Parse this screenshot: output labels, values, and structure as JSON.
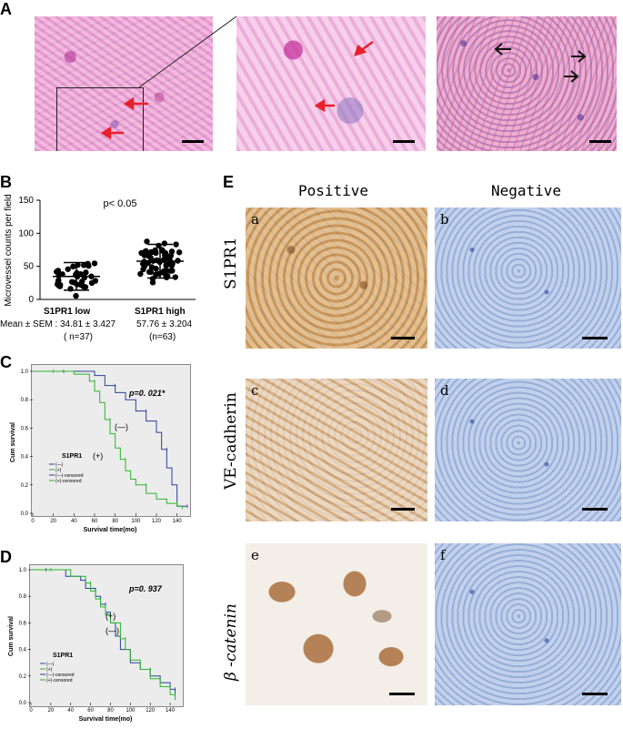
{
  "panels": {
    "A": "A",
    "B": "B",
    "C": "C",
    "D": "D",
    "E": "E"
  },
  "colors": {
    "arrow_red": "#e8202a",
    "km_blue": "#2a3f9e",
    "km_green": "#2bb52b"
  },
  "panelB": {
    "ylabel": "Microvessel counts per field",
    "yticks": [
      "0",
      "50",
      "100",
      "150"
    ],
    "pvalue": "p< 0.05",
    "mean_prefix": "Mean ± SEM :",
    "groups": [
      {
        "name": "S1PR1 low",
        "mean_sem": "34.81 ± 3.427",
        "n": "( n=37)"
      },
      {
        "name": "S1PR1 high",
        "mean_sem": "57.76 ± 3.204",
        "n": "(n=63)"
      }
    ]
  },
  "panelC": {
    "ylabel": "Cum survival",
    "xlabel": "Survival time(mo)",
    "yticks": [
      "0.0",
      "0.2",
      "0.4",
      "0.6",
      "0.8",
      "1.0"
    ],
    "xticks": [
      "0",
      "20",
      "40",
      "60",
      "80",
      "100",
      "120",
      "140"
    ],
    "p": "p=0. 021*",
    "neg": "(—)",
    "pos": "(+)",
    "legend_title": "S1PR1",
    "legend": [
      "(—)",
      "(+)",
      "(—)-censored",
      "(+)-censored"
    ]
  },
  "panelD": {
    "ylabel": "Cum survival",
    "xlabel": "Survival time(mo)",
    "yticks": [
      "0.0",
      "0.2",
      "0.4",
      "0.6",
      "0.8",
      "1.0"
    ],
    "xticks": [
      "0",
      "20",
      "40",
      "60",
      "80",
      "100",
      "120",
      "140"
    ],
    "p": "p=0. 937",
    "neg": "(—)",
    "pos": "(+)",
    "legend_title": "S1PR1",
    "legend": [
      "(—)",
      "(+)",
      "(—)-censored",
      "(+)-censored"
    ]
  },
  "panelE": {
    "col_headers": [
      "Positive",
      "Negative"
    ],
    "row_labels": [
      "S1PR1",
      "VE-cadherin",
      "β -catenin"
    ],
    "sub_labels": [
      "a",
      "b",
      "c",
      "d",
      "e",
      "f"
    ]
  },
  "chart_data": [
    {
      "type": "scatter",
      "title": "",
      "ylabel": "Microvessel counts per field",
      "ylim": [
        0,
        150
      ],
      "categories": [
        "S1PR1 low",
        "S1PR1 high"
      ],
      "series": [
        {
          "name": "S1PR1 low",
          "mean": 34.81,
          "sem": 3.427,
          "n": 37
        },
        {
          "name": "S1PR1 high",
          "mean": 57.76,
          "sem": 3.204,
          "n": 63
        }
      ]
    },
    {
      "type": "line",
      "title": "",
      "xlabel": "Survival time(mo)",
      "ylabel": "Cum survival",
      "xlim": [
        0,
        150
      ],
      "ylim": [
        0,
        1
      ],
      "series": [
        {
          "name": "(—)",
          "x": [
            0,
            30,
            60,
            70,
            80,
            90,
            100,
            110,
            120,
            125,
            130,
            135,
            140,
            150
          ],
          "y": [
            1.0,
            1.0,
            0.97,
            0.9,
            0.85,
            0.8,
            0.72,
            0.65,
            0.57,
            0.45,
            0.32,
            0.2,
            0.05,
            0.05
          ]
        },
        {
          "name": "(+)",
          "x": [
            0,
            20,
            40,
            55,
            60,
            65,
            70,
            75,
            80,
            85,
            90,
            95,
            100,
            110,
            120,
            130,
            140,
            145
          ],
          "y": [
            1.0,
            1.0,
            0.98,
            0.93,
            0.86,
            0.78,
            0.66,
            0.56,
            0.46,
            0.38,
            0.3,
            0.24,
            0.2,
            0.14,
            0.1,
            0.07,
            0.05,
            0.03
          ]
        }
      ]
    },
    {
      "type": "line",
      "title": "",
      "xlabel": "Survival time(mo)",
      "ylabel": "Cum survival",
      "xlim": [
        0,
        150
      ],
      "ylim": [
        0,
        1
      ],
      "series": [
        {
          "name": "(—)",
          "x": [
            0,
            15,
            35,
            50,
            55,
            65,
            70,
            75,
            80,
            85,
            90,
            100,
            110,
            120,
            130,
            140,
            145
          ],
          "y": [
            1.0,
            1.0,
            0.95,
            0.92,
            0.86,
            0.8,
            0.74,
            0.68,
            0.6,
            0.5,
            0.4,
            0.3,
            0.25,
            0.2,
            0.15,
            0.1,
            0.05
          ]
        },
        {
          "name": "(+)",
          "x": [
            0,
            20,
            40,
            55,
            60,
            65,
            70,
            75,
            80,
            90,
            95,
            100,
            110,
            120,
            130,
            140,
            145
          ],
          "y": [
            1.0,
            1.0,
            0.95,
            0.9,
            0.84,
            0.78,
            0.72,
            0.66,
            0.6,
            0.48,
            0.4,
            0.32,
            0.25,
            0.18,
            0.12,
            0.06,
            0.02
          ]
        }
      ]
    }
  ]
}
